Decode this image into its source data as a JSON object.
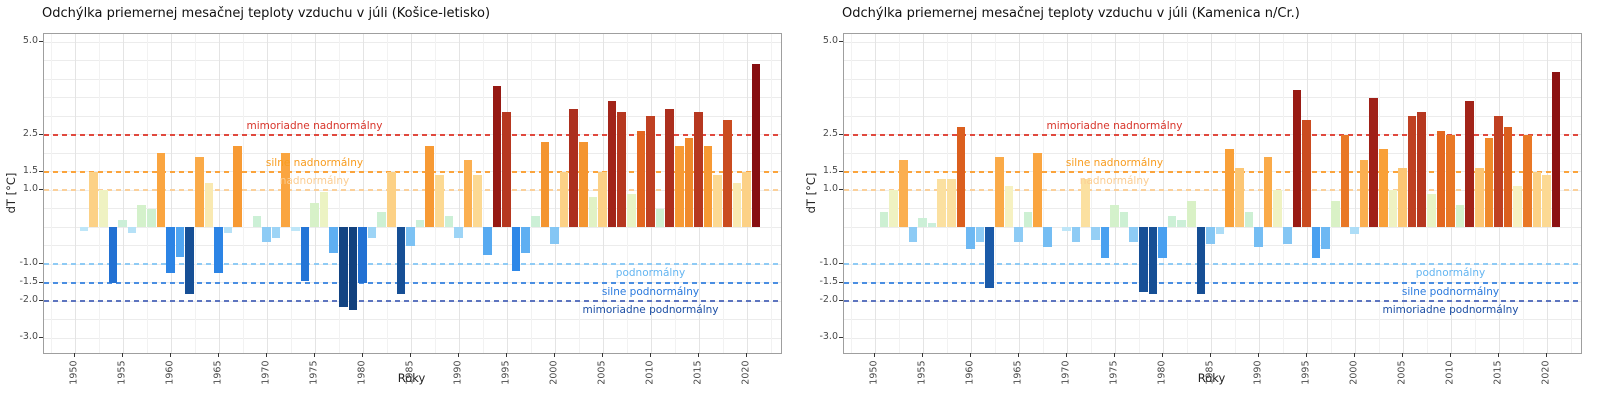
{
  "axis": {
    "x_label": "Roky",
    "y_label": "dT [°C]",
    "y_ticks": [
      5.0,
      2.5,
      1.5,
      1.0,
      -1.0,
      -1.5,
      -2.0,
      -3.0
    ],
    "x_ticks": [
      1950,
      1955,
      1960,
      1965,
      1970,
      1975,
      1980,
      1985,
      1990,
      1995,
      2000,
      2005,
      2010,
      2015,
      2020
    ],
    "y_gridline_step": 0.5,
    "y_range_shown": [
      -3.0,
      5.0
    ],
    "grid": "on",
    "legend": "none"
  },
  "thresholds": [
    {
      "value": 2.5,
      "label": "mimoriadne nadnormálny",
      "line_color": "#e0493e",
      "label_color": "#d8352b",
      "side": "above",
      "label_anchor_year": 1975
    },
    {
      "value": 1.5,
      "label": "silne nadnormálny",
      "line_color": "#fba43c",
      "label_color": "#f89c1e",
      "side": "above",
      "label_anchor_year": 1975
    },
    {
      "value": 1.0,
      "label": "nadnormálny",
      "line_color": "#fbd09a",
      "label_color": "#fbcd92",
      "side": "above",
      "label_anchor_year": 1975
    },
    {
      "value": -1.0,
      "label": "podnormálny",
      "line_color": "#8fcbf5",
      "label_color": "#64b5f1",
      "side": "below",
      "label_anchor_year": 2010
    },
    {
      "value": -1.5,
      "label": "silne podnormálny",
      "line_color": "#4a8ee2",
      "label_color": "#2979dd",
      "side": "below",
      "label_anchor_year": 2010
    },
    {
      "value": -2.0,
      "label": "mimoriadne podnormálny",
      "line_color": "#5c74bf",
      "label_color": "#1d4fa5",
      "side": "below",
      "label_anchor_year": 2010
    }
  ],
  "color_stops": [
    {
      "v": -2.3,
      "c": "#123f7b"
    },
    {
      "v": -1.7,
      "c": "#17529a"
    },
    {
      "v": -1.5,
      "c": "#2271d3"
    },
    {
      "v": -1.2,
      "c": "#2e88e8"
    },
    {
      "v": -0.85,
      "c": "#49a0f0"
    },
    {
      "v": -0.55,
      "c": "#74bdf3"
    },
    {
      "v": -0.3,
      "c": "#9dd4f6"
    },
    {
      "v": -0.05,
      "c": "#c6eaf8"
    },
    {
      "v": 0.05,
      "c": "#cbefdc"
    },
    {
      "v": 0.45,
      "c": "#cdf0d2"
    },
    {
      "v": 0.7,
      "c": "#d9f1c6"
    },
    {
      "v": 0.95,
      "c": "#ecf3c3"
    },
    {
      "v": 1.1,
      "c": "#f6f1c1"
    },
    {
      "v": 1.3,
      "c": "#fbe0a0"
    },
    {
      "v": 1.5,
      "c": "#fcd186"
    },
    {
      "v": 1.8,
      "c": "#fbaf50"
    },
    {
      "v": 2.1,
      "c": "#f9a038"
    },
    {
      "v": 2.35,
      "c": "#f3922e"
    },
    {
      "v": 2.6,
      "c": "#e36720"
    },
    {
      "v": 2.8,
      "c": "#d4581d"
    },
    {
      "v": 3.0,
      "c": "#bf4022"
    },
    {
      "v": 3.2,
      "c": "#ac2f1e"
    },
    {
      "v": 3.45,
      "c": "#a02118"
    },
    {
      "v": 3.8,
      "c": "#961913"
    },
    {
      "v": 4.45,
      "c": "#860d11"
    }
  ],
  "chart_data": [
    {
      "type": "bar",
      "title": "Odchýlka priemernej mesačnej teploty vzduchu v júli (Košice-letisko)",
      "station": "Košice-letisko",
      "xlabel": "Roky",
      "ylabel": "dT [°C]",
      "years": [
        1951,
        1952,
        1953,
        1954,
        1955,
        1956,
        1957,
        1958,
        1959,
        1960,
        1961,
        1962,
        1963,
        1964,
        1965,
        1966,
        1967,
        1968,
        1969,
        1970,
        1971,
        1972,
        1973,
        1974,
        1975,
        1976,
        1977,
        1978,
        1979,
        1980,
        1981,
        1982,
        1983,
        1984,
        1985,
        1986,
        1987,
        1988,
        1989,
        1990,
        1991,
        1992,
        1993,
        1994,
        1995,
        1996,
        1997,
        1998,
        1999,
        2000,
        2001,
        2002,
        2003,
        2004,
        2005,
        2006,
        2007,
        2008,
        2009,
        2010,
        2011,
        2012,
        2013,
        2014,
        2015,
        2016,
        2017,
        2018,
        2019,
        2020,
        2021
      ],
      "values": [
        -0.1,
        1.5,
        1.0,
        -1.5,
        0.2,
        -0.15,
        0.6,
        0.5,
        2.0,
        -1.25,
        -0.8,
        -1.8,
        1.9,
        1.2,
        -1.25,
        -0.15,
        2.2,
        null,
        0.3,
        -0.4,
        -0.3,
        2.0,
        -0.1,
        -1.45,
        0.65,
        0.95,
        -0.7,
        -2.15,
        -2.25,
        -1.5,
        -0.3,
        0.4,
        1.5,
        -1.8,
        -0.5,
        0.2,
        2.2,
        1.4,
        0.3,
        -0.3,
        1.8,
        1.4,
        -0.75,
        3.8,
        3.1,
        -1.2,
        -0.7,
        0.3,
        2.3,
        -0.45,
        1.5,
        3.2,
        2.3,
        0.8,
        1.5,
        3.4,
        3.1,
        0.9,
        2.6,
        3.0,
        0.5,
        3.2,
        2.2,
        2.4,
        3.1,
        2.2,
        1.4,
        2.9,
        1.2,
        1.5,
        4.4
      ]
    },
    {
      "type": "bar",
      "title": "Odchýlka priemernej mesačnej teploty vzduchu v júli (Kamenica n/Cr.)",
      "station": "Kamenica n/Cr.",
      "xlabel": "Roky",
      "ylabel": "dT [°C]",
      "years": [
        1951,
        1952,
        1953,
        1954,
        1955,
        1956,
        1957,
        1958,
        1959,
        1960,
        1961,
        1962,
        1963,
        1964,
        1965,
        1966,
        1967,
        1968,
        1969,
        1970,
        1971,
        1972,
        1973,
        1974,
        1975,
        1976,
        1977,
        1978,
        1979,
        1980,
        1981,
        1982,
        1983,
        1984,
        1985,
        1986,
        1987,
        1988,
        1989,
        1990,
        1991,
        1992,
        1993,
        1994,
        1995,
        1996,
        1997,
        1998,
        1999,
        2000,
        2001,
        2002,
        2003,
        2004,
        2005,
        2006,
        2007,
        2008,
        2009,
        2010,
        2011,
        2012,
        2013,
        2014,
        2015,
        2016,
        2017,
        2018,
        2019,
        2020,
        2021
      ],
      "values": [
        0.4,
        1.0,
        1.8,
        -0.4,
        0.25,
        0.1,
        1.3,
        1.3,
        2.7,
        -0.6,
        -0.4,
        -1.65,
        1.9,
        1.1,
        -0.4,
        0.4,
        2.0,
        -0.55,
        null,
        -0.1,
        -0.4,
        1.3,
        -0.35,
        -0.85,
        0.6,
        0.4,
        -0.4,
        -1.75,
        -1.8,
        -0.85,
        0.3,
        0.2,
        0.7,
        -1.8,
        -0.45,
        -0.2,
        2.1,
        1.6,
        0.4,
        -0.55,
        1.9,
        1.0,
        -0.45,
        3.7,
        2.9,
        -0.85,
        -0.6,
        0.7,
        2.5,
        -0.2,
        1.8,
        3.5,
        2.1,
        1.0,
        1.6,
        3.0,
        3.1,
        0.9,
        2.6,
        2.5,
        0.6,
        3.4,
        1.6,
        2.4,
        3.0,
        2.7,
        1.1,
        2.5,
        1.5,
        1.4,
        4.2
      ]
    }
  ]
}
